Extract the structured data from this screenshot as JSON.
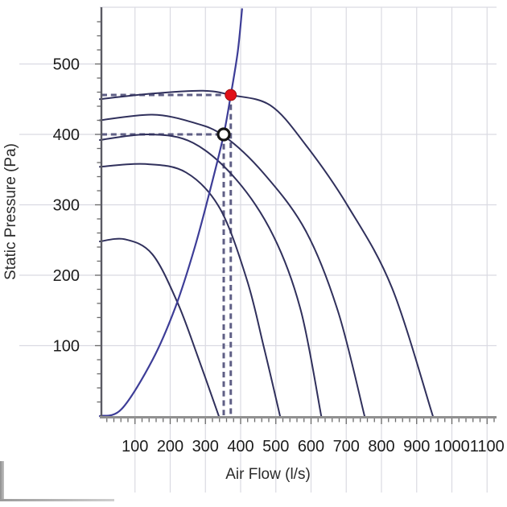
{
  "chart_data": {
    "type": "line",
    "title": "",
    "xlabel": "Air Flow (l/s)",
    "ylabel": "Static Pressure (Pa)",
    "xlim": [
      0,
      1130
    ],
    "ylim": [
      0,
      580
    ],
    "grid": "on",
    "legend": "none",
    "x_tick_labels": [
      100,
      200,
      300,
      400,
      500,
      600,
      700,
      800,
      900,
      1000,
      1100
    ],
    "y_tick_labels": [
      100,
      200,
      300,
      400,
      500
    ],
    "x_minor_tick_step": 20,
    "y_minor_tick_step": 20,
    "series": [
      {
        "name": "fan-curve-1",
        "role": "fan",
        "points": [
          [
            0,
            450
          ],
          [
            149,
            458
          ],
          [
            293,
            462
          ],
          [
            372,
            456
          ],
          [
            485,
            441
          ],
          [
            585,
            385
          ],
          [
            705,
            298
          ],
          [
            830,
            182
          ],
          [
            946,
            0
          ]
        ]
      },
      {
        "name": "fan-curve-2",
        "role": "fan",
        "points": [
          [
            0,
            420
          ],
          [
            149,
            428
          ],
          [
            264,
            417
          ],
          [
            352,
            398
          ],
          [
            465,
            345
          ],
          [
            585,
            263
          ],
          [
            677,
            148
          ],
          [
            752,
            0
          ]
        ]
      },
      {
        "name": "fan-curve-3",
        "role": "fan",
        "points": [
          [
            0,
            392
          ],
          [
            139,
            400
          ],
          [
            265,
            388
          ],
          [
            389,
            335
          ],
          [
            494,
            255
          ],
          [
            571,
            150
          ],
          [
            629,
            0
          ]
        ]
      },
      {
        "name": "fan-curve-4",
        "role": "fan",
        "points": [
          [
            0,
            354
          ],
          [
            129,
            358
          ],
          [
            245,
            346
          ],
          [
            341,
            295
          ],
          [
            417,
            195
          ],
          [
            465,
            100
          ],
          [
            512,
            0
          ]
        ]
      },
      {
        "name": "fan-curve-5",
        "role": "fan",
        "points": [
          [
            0,
            248
          ],
          [
            72,
            251
          ],
          [
            149,
            230
          ],
          [
            220,
            162
          ],
          [
            278,
            85
          ],
          [
            338,
            0
          ]
        ]
      },
      {
        "name": "system-resistance-curve",
        "role": "system",
        "points": [
          [
            0,
            0
          ],
          [
            62,
            10
          ],
          [
            150,
            80
          ],
          [
            215,
            155
          ],
          [
            270,
            240
          ],
          [
            318,
            330
          ],
          [
            352,
            400
          ],
          [
            372,
            456
          ],
          [
            392,
            518
          ],
          [
            404,
            578
          ]
        ]
      }
    ],
    "markers": [
      {
        "name": "actual-operating-point",
        "style": "filled-dot",
        "x": 372,
        "y": 456
      },
      {
        "name": "duty-point",
        "style": "open-circle",
        "x": 352,
        "y": 400
      }
    ],
    "guide_lines": [
      {
        "name": "pressure-guide-456",
        "axis": "y",
        "value": 456,
        "to_x": 372
      },
      {
        "name": "pressure-guide-400",
        "axis": "y",
        "value": 400,
        "to_x": 352
      },
      {
        "name": "flow-guide-372",
        "axis": "x",
        "value": 372,
        "to_y": 456
      },
      {
        "name": "flow-guide-352",
        "axis": "x",
        "value": 352,
        "to_y": 400
      }
    ],
    "colors": {
      "fan_curve": "#30305c",
      "system_curve": "#3d3d97",
      "guide_dash": "#5f5f85",
      "operating_point_fill": "#e01118",
      "operating_point_edge": "#8f0c0c",
      "duty_point_ring": "#151515",
      "duty_point_fill": "#ffffff",
      "grid": "#dadae2",
      "axis_x": "#909090",
      "axis_y": "#5a5a63",
      "tick": "#6a6a6a",
      "label": "#1c1c1c"
    }
  }
}
